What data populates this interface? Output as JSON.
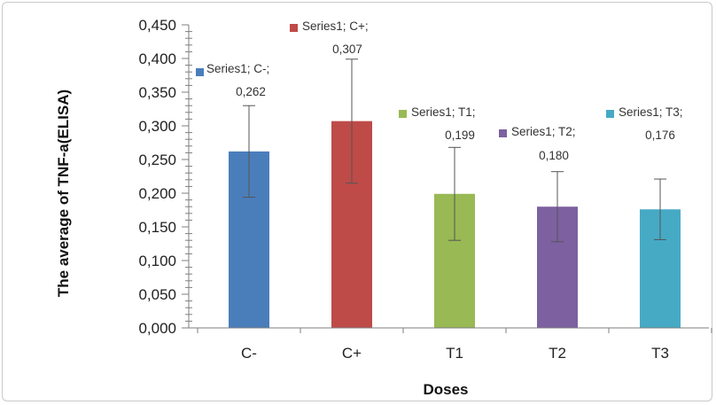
{
  "chart_data": {
    "type": "bar",
    "title": "",
    "xlabel": "Doses",
    "ylabel": "The average of TNF-a(ELISA)",
    "ylim": [
      0,
      0.45
    ],
    "ytick_step": 0.05,
    "ytick_labels": [
      "0,000",
      "0,050",
      "0,100",
      "0,150",
      "0,200",
      "0,250",
      "0,300",
      "0,350",
      "0,400",
      "0,450"
    ],
    "categories": [
      "C-",
      "C+",
      "T1",
      "T2",
      "T3"
    ],
    "series": [
      {
        "name": "Series1",
        "values": [
          0.262,
          0.307,
          0.199,
          0.18,
          0.176
        ],
        "error": [
          0.068,
          0.092,
          0.069,
          0.052,
          0.045
        ],
        "colors": [
          "#4a7ebb",
          "#be4b48",
          "#98b954",
          "#7d60a0",
          "#46aac5"
        ]
      }
    ],
    "data_labels": [
      {
        "line1": "Series1; C-;",
        "line2": "0,262"
      },
      {
        "line1": "Series1; C+;",
        "line2": "0,307"
      },
      {
        "line1": "Series1; T1;",
        "line2": "0,199"
      },
      {
        "line1": "Series1; T2;",
        "line2": "0,180"
      },
      {
        "line1": "Series1; T3;",
        "line2": "0,176"
      }
    ],
    "grid": false,
    "legend": "none"
  }
}
